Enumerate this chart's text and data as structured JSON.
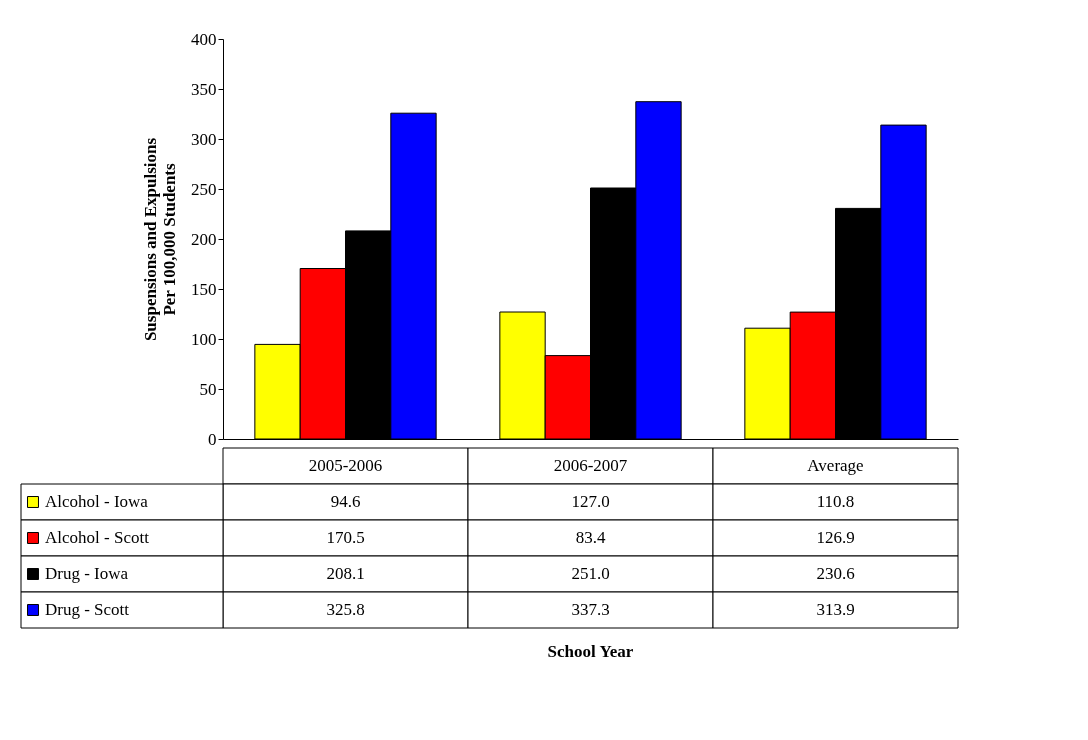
{
  "chart_data": {
    "type": "bar",
    "ylabel": "Suspensions and Expulsions\nPer 100,000 Students",
    "annotations": [
      "School Year"
    ],
    "categories": [
      "2005-2006",
      "2006-2007",
      "Average"
    ],
    "series": [
      {
        "name": "Alcohol - Iowa",
        "color": "#ffff00",
        "values": [
          94.6,
          127.0,
          110.8
        ],
        "value_labels": [
          "94.6",
          "127.0",
          "110.8"
        ]
      },
      {
        "name": "Alcohol - Scott",
        "color": "#ff0000",
        "values": [
          170.5,
          83.4,
          126.9
        ],
        "value_labels": [
          "170.5",
          "83.4",
          "126.9"
        ]
      },
      {
        "name": "Drug - Iowa",
        "color": "#000000",
        "values": [
          208.1,
          251.0,
          230.6
        ],
        "value_labels": [
          "208.1",
          "251.0",
          "230.6"
        ]
      },
      {
        "name": "Drug - Scott",
        "color": "#0000ff",
        "values": [
          325.8,
          337.3,
          313.9
        ],
        "value_labels": [
          "325.8",
          "337.3",
          "313.9"
        ]
      }
    ],
    "ylim": [
      0,
      400
    ],
    "yticks": [
      0,
      50,
      100,
      150,
      200,
      250,
      300,
      350,
      400
    ],
    "grid": false,
    "legend": "bottom"
  }
}
